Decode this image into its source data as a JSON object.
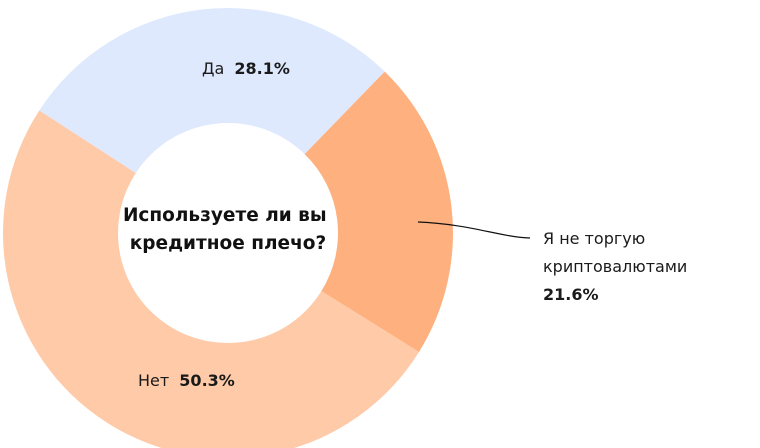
{
  "chart_data": {
    "type": "pie",
    "variant": "donut",
    "title": "Используете ли вы кредитное плечо?",
    "title_lines": [
      "Используете ли вы",
      "кредитное плечо?"
    ],
    "slices": [
      {
        "label": "Да",
        "value": 28.1,
        "value_label": "28.1%",
        "color": "#dfe9fd"
      },
      {
        "label_lines": [
          "Я не торгую",
          "криптовалютами"
        ],
        "value": 21.6,
        "value_label": "21.6%",
        "color": "#feb07e"
      },
      {
        "label": "Нет",
        "value": 50.3,
        "value_label": "50.3%",
        "color": "#fecaa8"
      }
    ]
  }
}
